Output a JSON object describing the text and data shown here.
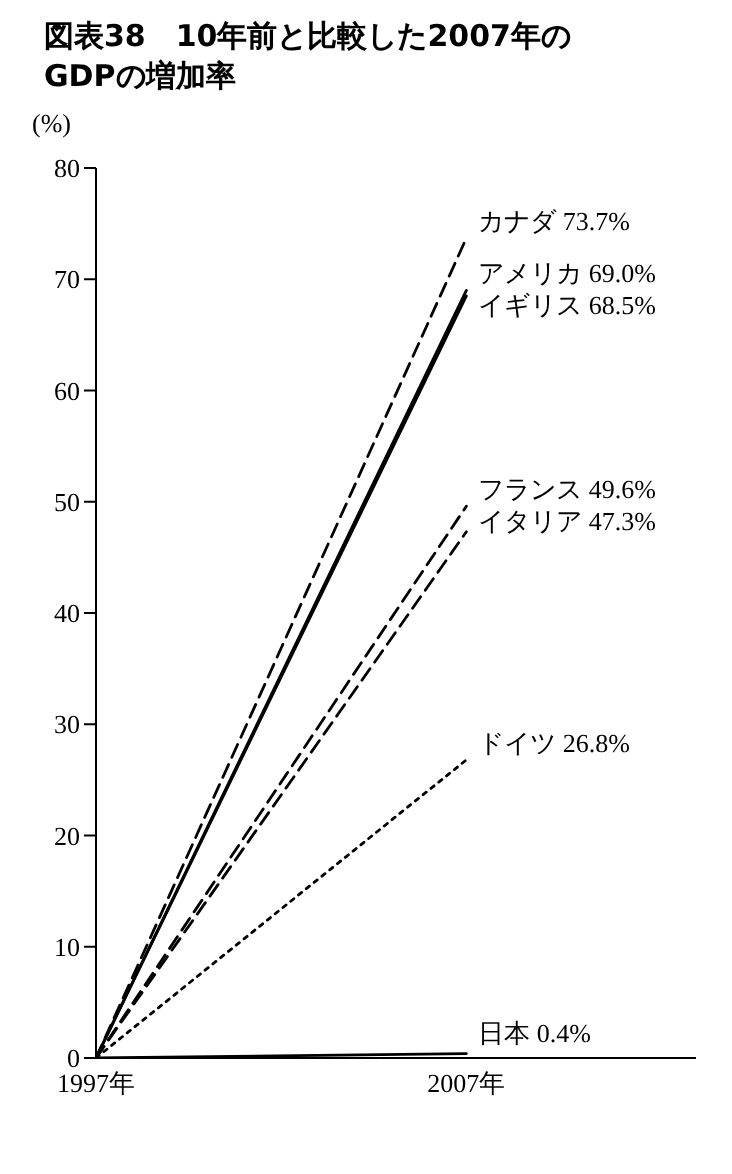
{
  "chart_data": {
    "type": "line",
    "title": "図表38　10年前と比較した2007年の\nGDPの増加率",
    "ylabel": "(%)",
    "categories": [
      "1997年",
      "2007年"
    ],
    "ylim": [
      0,
      80
    ],
    "yticks": [
      0,
      10,
      20,
      30,
      40,
      50,
      60,
      70,
      80
    ],
    "marker": "none",
    "series": [
      {
        "name": "カナダ",
        "color": "#000000",
        "values": [
          0,
          73.7
        ],
        "value_labels": [
          null,
          "73.7%"
        ],
        "line_style": "dashed"
      },
      {
        "name": "アメリカ",
        "color": "#000000",
        "values": [
          0,
          69.0
        ],
        "value_labels": [
          null,
          "69.0%"
        ],
        "line_style": "solid"
      },
      {
        "name": "イギリス",
        "color": "#000000",
        "values": [
          0,
          68.5
        ],
        "value_labels": [
          null,
          "68.5%"
        ],
        "line_style": "solid"
      },
      {
        "name": "フランス",
        "color": "#000000",
        "values": [
          0,
          49.6
        ],
        "value_labels": [
          null,
          "49.6%"
        ],
        "line_style": "dashed"
      },
      {
        "name": "イタリア",
        "color": "#000000",
        "values": [
          0,
          47.3
        ],
        "value_labels": [
          null,
          "47.3%"
        ],
        "line_style": "dashed"
      },
      {
        "name": "ドイツ",
        "color": "#000000",
        "values": [
          0,
          26.8
        ],
        "value_labels": [
          null,
          "26.8%"
        ],
        "line_style": "dotted"
      },
      {
        "name": "日本",
        "color": "#000000",
        "values": [
          0,
          0.4
        ],
        "value_labels": [
          null,
          "0.4%"
        ],
        "line_style": "solid"
      }
    ]
  }
}
